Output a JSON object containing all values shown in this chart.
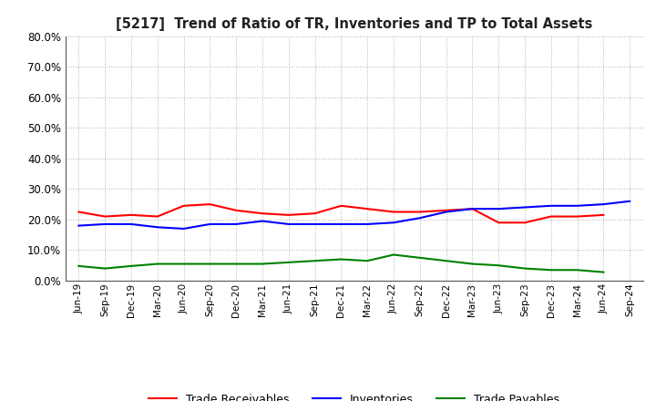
{
  "title": "[5217]  Trend of Ratio of TR, Inventories and TP to Total Assets",
  "x_labels": [
    "Jun-19",
    "Sep-19",
    "Dec-19",
    "Mar-20",
    "Jun-20",
    "Sep-20",
    "Dec-20",
    "Mar-21",
    "Jun-21",
    "Sep-21",
    "Dec-21",
    "Mar-22",
    "Jun-22",
    "Sep-22",
    "Dec-22",
    "Mar-23",
    "Jun-23",
    "Sep-23",
    "Dec-23",
    "Mar-24",
    "Jun-24",
    "Sep-24"
  ],
  "trade_receivables": [
    22.5,
    21.0,
    21.5,
    21.0,
    24.5,
    25.0,
    23.0,
    22.0,
    21.5,
    22.0,
    24.5,
    23.5,
    22.5,
    22.5,
    23.0,
    23.5,
    19.0,
    19.0,
    21.0,
    21.0,
    21.5,
    null
  ],
  "inventories": [
    18.0,
    18.5,
    18.5,
    17.5,
    17.0,
    18.5,
    18.5,
    19.5,
    18.5,
    18.5,
    18.5,
    18.5,
    19.0,
    20.5,
    22.5,
    23.5,
    23.5,
    24.0,
    24.5,
    24.5,
    25.0,
    26.0
  ],
  "trade_payables": [
    4.8,
    4.0,
    4.8,
    5.5,
    5.5,
    5.5,
    5.5,
    5.5,
    6.0,
    6.5,
    7.0,
    6.5,
    8.5,
    7.5,
    6.5,
    5.5,
    5.0,
    4.0,
    3.5,
    3.5,
    2.8,
    null
  ],
  "ylim": [
    0.0,
    80.0
  ],
  "yticks": [
    0.0,
    10.0,
    20.0,
    30.0,
    40.0,
    50.0,
    60.0,
    70.0,
    80.0
  ],
  "color_tr": "#ff0000",
  "color_inv": "#0000ff",
  "color_tp": "#008000",
  "legend_labels": [
    "Trade Receivables",
    "Inventories",
    "Trade Payables"
  ],
  "bg_color": "#ffffff",
  "plot_bg_color": "#ffffff",
  "grid_color": "#999999"
}
